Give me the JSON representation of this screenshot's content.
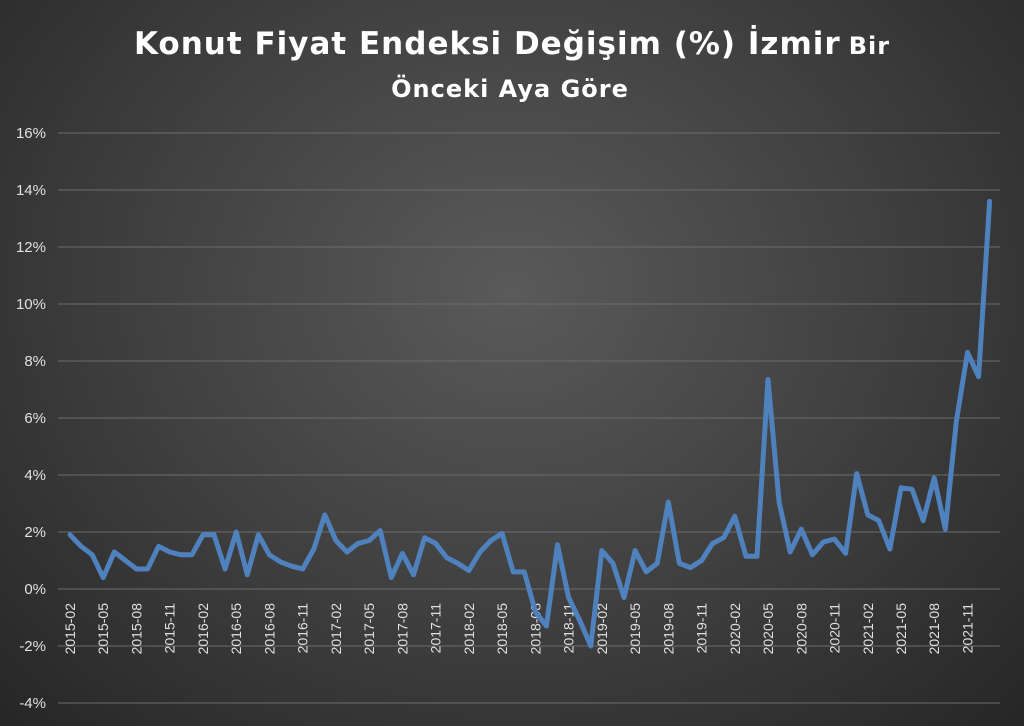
{
  "chart_data": {
    "type": "line",
    "title_main": "Konut Fiyat Endeksi Değişim (%) İzmir",
    "title_main_suffix": "Bir",
    "subtitle": "Önceki Aya Göre",
    "xlabel": "",
    "ylabel": "",
    "ylim": [
      -4,
      16
    ],
    "yticks": [
      "-4%",
      "-2%",
      "0%",
      "2%",
      "4%",
      "6%",
      "8%",
      "10%",
      "12%",
      "14%",
      "16%"
    ],
    "ytick_values": [
      -4,
      -2,
      0,
      2,
      4,
      6,
      8,
      10,
      12,
      14,
      16
    ],
    "grid": true,
    "legend": "none",
    "line_color": "#4f81bd",
    "xtick_labels": [
      "2015-02",
      "2015-05",
      "2015-08",
      "2015-11",
      "2016-02",
      "2016-05",
      "2016-08",
      "2016-11",
      "2017-02",
      "2017-05",
      "2017-08",
      "2017-11",
      "2018-02",
      "2018-05",
      "2018-08",
      "2018-11",
      "2019-02",
      "2019-05",
      "2019-08",
      "2019-11",
      "2020-02",
      "2020-05",
      "2020-08",
      "2020-11",
      "2021-02",
      "2021-05",
      "2021-08",
      "2021-11"
    ],
    "x": [
      "2015-02",
      "2015-03",
      "2015-04",
      "2015-05",
      "2015-06",
      "2015-07",
      "2015-08",
      "2015-09",
      "2015-10",
      "2015-11",
      "2015-12",
      "2016-01",
      "2016-02",
      "2016-03",
      "2016-04",
      "2016-05",
      "2016-06",
      "2016-07",
      "2016-08",
      "2016-09",
      "2016-10",
      "2016-11",
      "2016-12",
      "2017-01",
      "2017-02",
      "2017-03",
      "2017-04",
      "2017-05",
      "2017-06",
      "2017-07",
      "2017-08",
      "2017-09",
      "2017-10",
      "2017-11",
      "2017-12",
      "2018-01",
      "2018-02",
      "2018-03",
      "2018-04",
      "2018-05",
      "2018-06",
      "2018-07",
      "2018-08",
      "2018-09",
      "2018-10",
      "2018-11",
      "2018-12",
      "2019-01",
      "2019-02",
      "2019-03",
      "2019-04",
      "2019-05",
      "2019-06",
      "2019-07",
      "2019-08",
      "2019-09",
      "2019-10",
      "2019-11",
      "2019-12",
      "2020-01",
      "2020-02",
      "2020-03",
      "2020-04",
      "2020-05",
      "2020-06",
      "2020-07",
      "2020-08",
      "2020-09",
      "2020-10",
      "2020-11",
      "2020-12",
      "2021-01",
      "2021-02",
      "2021-03",
      "2021-04",
      "2021-05",
      "2021-06",
      "2021-07",
      "2021-08",
      "2021-09",
      "2021-10",
      "2021-11",
      "2021-12",
      "2022-01"
    ],
    "values": [
      1.9,
      1.5,
      1.2,
      0.4,
      1.3,
      1.0,
      0.7,
      0.7,
      1.5,
      1.3,
      1.2,
      1.2,
      1.9,
      1.9,
      0.7,
      2.0,
      0.5,
      1.9,
      1.2,
      0.95,
      0.8,
      0.7,
      1.4,
      2.6,
      1.7,
      1.3,
      1.6,
      1.7,
      2.05,
      0.4,
      1.25,
      0.5,
      1.8,
      1.6,
      1.1,
      0.9,
      0.65,
      1.3,
      1.7,
      1.95,
      0.6,
      0.6,
      -0.8,
      -1.3,
      1.55,
      -0.3,
      -1.1,
      -2.0,
      1.35,
      0.9,
      -0.3,
      1.35,
      0.6,
      0.9,
      3.05,
      0.9,
      0.75,
      1.0,
      1.6,
      1.8,
      2.55,
      1.15,
      1.15,
      7.35,
      3.05,
      1.3,
      2.1,
      1.2,
      1.65,
      1.75,
      1.25,
      4.05,
      2.6,
      2.4,
      1.4,
      3.55,
      3.5,
      2.4,
      3.9,
      2.1,
      5.9,
      8.3,
      7.45,
      13.6
    ]
  }
}
